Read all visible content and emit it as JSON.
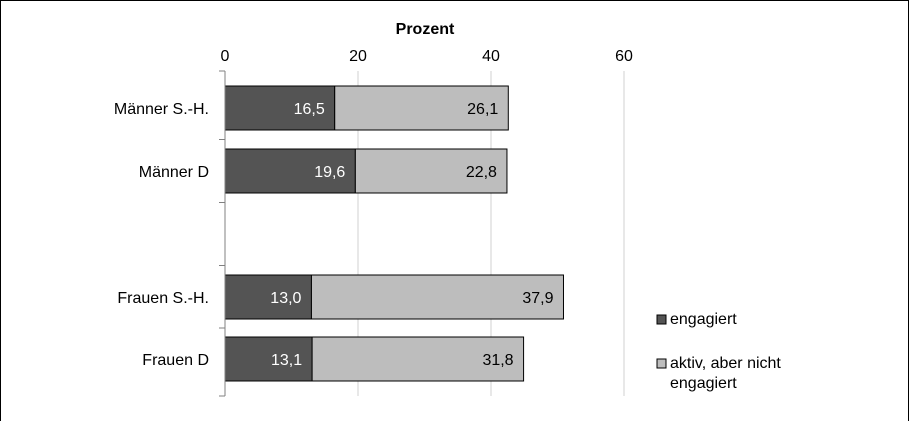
{
  "chart_data": {
    "type": "bar",
    "stacked": true,
    "orientation": "horizontal",
    "title": "Prozent",
    "xlabel": "Prozent",
    "ylabel": "",
    "xlim": [
      0,
      60
    ],
    "x_ticks": [
      0,
      20,
      40,
      60
    ],
    "grid": true,
    "legend_position": "bottom-right",
    "categories": [
      "Männer S.-H.",
      "Männer D",
      "",
      "Frauen S.-H.",
      "Frauen D"
    ],
    "series": [
      {
        "name": "engagiert",
        "color": "#545454",
        "label_color": "#ffffff",
        "values": [
          16.5,
          19.6,
          null,
          13.0,
          13.1
        ],
        "labels": [
          "16,5",
          "19,6",
          "",
          "13,0",
          "13,1"
        ]
      },
      {
        "name": "aktiv, aber nicht engagiert",
        "color": "#bdbdbd",
        "label_color": "#000000",
        "values": [
          26.1,
          22.8,
          null,
          37.9,
          31.8
        ],
        "labels": [
          "26,1",
          "22,8",
          "",
          "37,9",
          "31,8"
        ]
      }
    ],
    "legend": {
      "items": [
        {
          "lines": [
            "engagiert"
          ]
        },
        {
          "lines": [
            "aktiv, aber nicht",
            "engagiert"
          ]
        }
      ]
    }
  }
}
